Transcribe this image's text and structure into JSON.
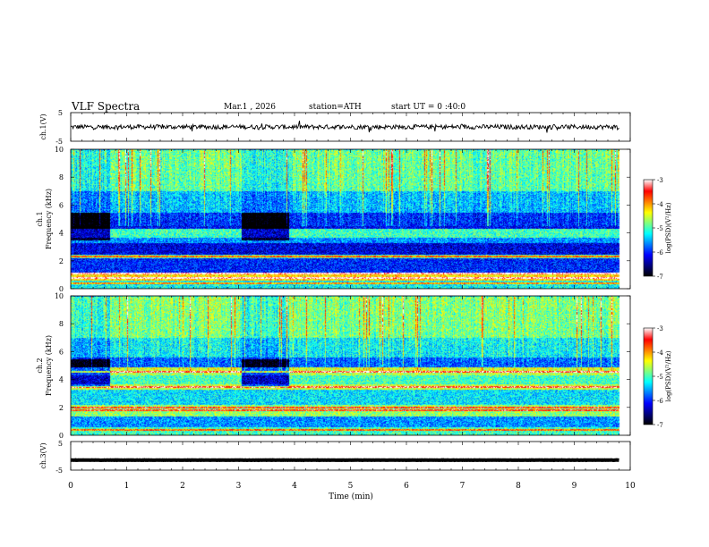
{
  "header": {
    "title": "VLF Spectra",
    "date": "Mar.1 , 2026",
    "station": "station=ATH",
    "start_time": "start UT =  0 :40:0"
  },
  "colors": {
    "colormap": [
      "#000000",
      "#00007f",
      "#0000ff",
      "#007fff",
      "#00ffff",
      "#7fff7f",
      "#ffff00",
      "#ff7f00",
      "#ff0000",
      "#ffffff"
    ],
    "trace": "#000000"
  },
  "chart_data": [
    {
      "name": "ch1-waveform",
      "type": "line",
      "ylabel": "ch.1(V)",
      "ylim": [
        -5,
        5
      ],
      "yticks": [
        "5",
        "-5"
      ],
      "xlim": [
        0,
        10
      ],
      "trace_xrange": [
        0,
        9.8
      ],
      "baseline": 0,
      "noise_amplitude": 0.8
    },
    {
      "name": "ch1-spectrogram",
      "type": "heatmap",
      "ylabel_line1": "ch.1",
      "ylabel_line2": "Frequency (kHz)",
      "ylim": [
        0,
        10
      ],
      "yticks": [
        "0",
        "2",
        "4",
        "6",
        "8",
        "10"
      ],
      "xlim": [
        0,
        10
      ],
      "data_xrange": [
        0,
        9.8
      ],
      "colorbar": {
        "label": "log(PSD)(V²/Hz)",
        "range": [
          -7,
          -3
        ],
        "ticks": [
          "-3",
          "-4",
          "-5",
          "-6",
          "-7"
        ]
      },
      "bands": [
        {
          "fmin": 0.0,
          "fmax": 0.6,
          "level": -5.2
        },
        {
          "fmin": 0.6,
          "fmax": 1.2,
          "level": -4.2
        },
        {
          "fmin": 1.2,
          "fmax": 2.2,
          "level": -6.0
        },
        {
          "fmin": 2.2,
          "fmax": 2.5,
          "level": -5.0
        },
        {
          "fmin": 2.5,
          "fmax": 3.3,
          "level": -6.2
        },
        {
          "fmin": 3.3,
          "fmax": 3.7,
          "level": -5.6
        },
        {
          "fmin": 3.7,
          "fmax": 4.3,
          "level": -5.0
        },
        {
          "fmin": 4.3,
          "fmax": 5.5,
          "level": -6.1
        },
        {
          "fmin": 5.5,
          "fmax": 7.0,
          "level": -5.6
        },
        {
          "fmin": 7.0,
          "fmax": 10.0,
          "level": -5.1
        }
      ],
      "quiet_intervals": [
        [
          0,
          0.7
        ],
        [
          3.05,
          3.9
        ]
      ],
      "tones_khz": [
        0.4,
        0.8,
        1.1,
        2.35
      ]
    },
    {
      "name": "ch2-spectrogram",
      "type": "heatmap",
      "ylabel_line1": "ch.2",
      "ylabel_line2": "Frequency (kHz)",
      "ylim": [
        0,
        10
      ],
      "yticks": [
        "0",
        "2",
        "4",
        "6",
        "8",
        "10"
      ],
      "xlim": [
        0,
        10
      ],
      "data_xrange": [
        0,
        9.8
      ],
      "colorbar": {
        "label": "log(PSD)(V²/Hz)",
        "range": [
          -7,
          -3
        ],
        "ticks": [
          "-3",
          "-4",
          "-5",
          "-6",
          "-7"
        ]
      },
      "bands": [
        {
          "fmin": 0.0,
          "fmax": 0.6,
          "level": -5.0
        },
        {
          "fmin": 0.6,
          "fmax": 1.4,
          "level": -5.6
        },
        {
          "fmin": 1.4,
          "fmax": 2.2,
          "level": -4.7
        },
        {
          "fmin": 2.2,
          "fmax": 3.3,
          "level": -5.3
        },
        {
          "fmin": 3.3,
          "fmax": 3.7,
          "level": -4.5
        },
        {
          "fmin": 3.7,
          "fmax": 4.3,
          "level": -5.0
        },
        {
          "fmin": 4.3,
          "fmax": 4.9,
          "level": -4.6
        },
        {
          "fmin": 4.9,
          "fmax": 5.6,
          "level": -5.9
        },
        {
          "fmin": 5.6,
          "fmax": 7.0,
          "level": -5.4
        },
        {
          "fmin": 7.0,
          "fmax": 10.0,
          "level": -5.0
        }
      ],
      "quiet_intervals": [
        [
          0,
          0.7
        ],
        [
          3.05,
          3.9
        ]
      ],
      "tones_khz": [
        0.4,
        1.8,
        2.0,
        3.5,
        4.6
      ]
    },
    {
      "name": "ch3-waveform",
      "type": "line",
      "ylabel": "ch.3(V)",
      "ylim": [
        -5,
        5
      ],
      "yticks": [
        "5",
        "-5"
      ],
      "xlim": [
        0,
        10
      ],
      "trace_xrange": [
        0,
        9.8
      ],
      "baseline": -1.5,
      "noise_amplitude": 0.05
    }
  ],
  "xaxis": {
    "label": "Time (min)",
    "ticks": [
      "0",
      "1",
      "2",
      "3",
      "4",
      "5",
      "6",
      "7",
      "8",
      "9",
      "10"
    ]
  }
}
